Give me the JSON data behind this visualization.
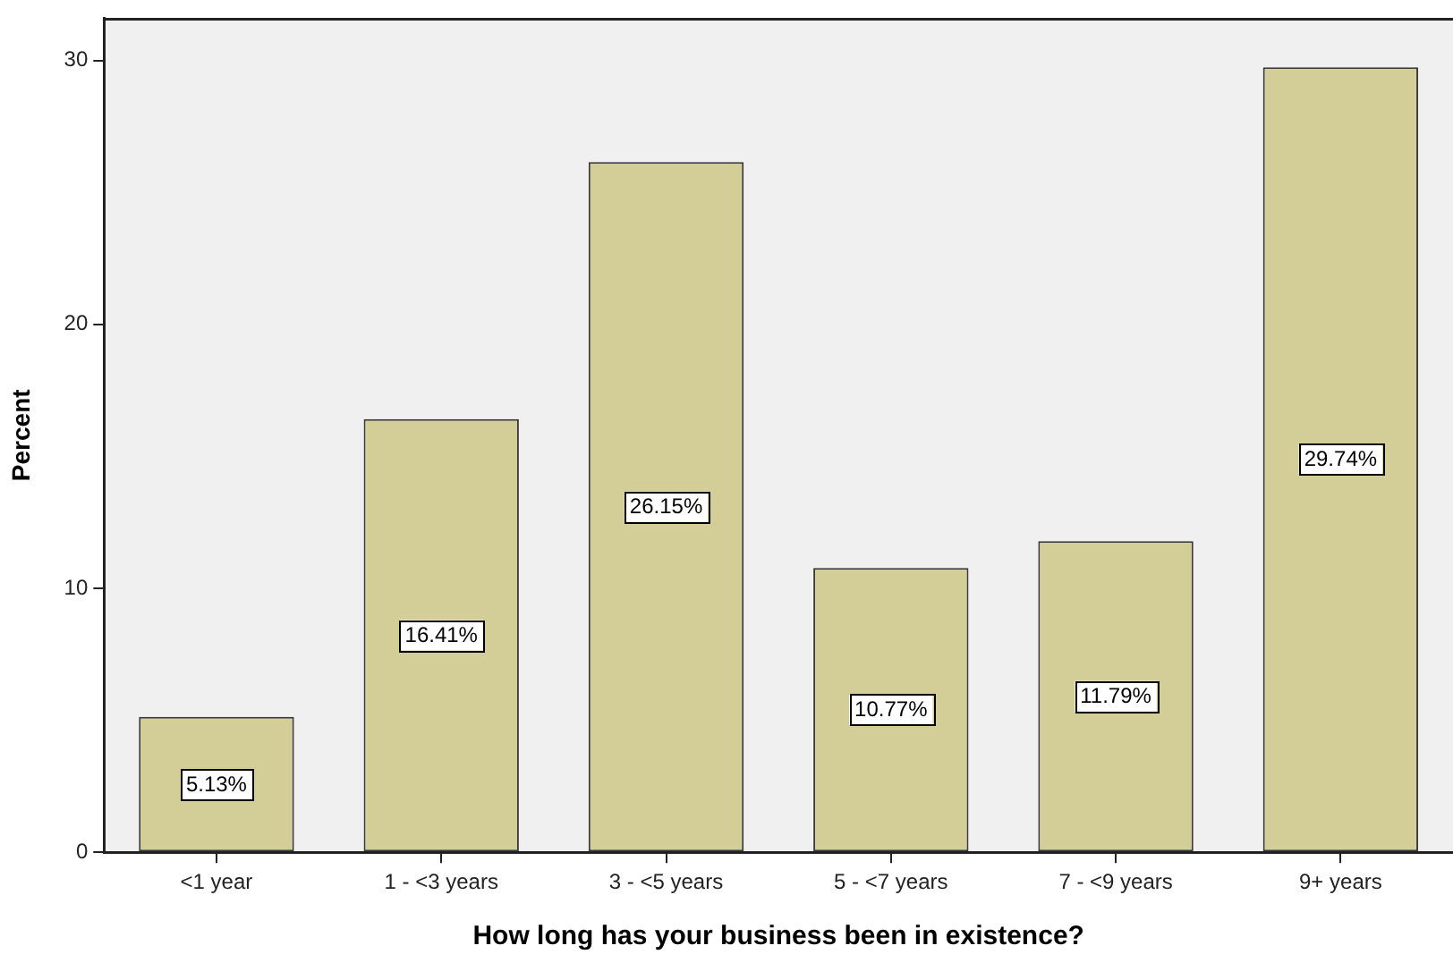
{
  "chart_data": {
    "type": "bar",
    "xlabel": "How long has your business been in existence?",
    "ylabel": "Percent",
    "categories": [
      "<1 year",
      "1 - <3 years",
      "3 - <5 years",
      "5 - <7 years",
      "7 - <9 years",
      "9+ years"
    ],
    "values": [
      5.13,
      16.41,
      26.15,
      10.77,
      11.79,
      29.74
    ],
    "value_labels": [
      "5.13%",
      "16.41%",
      "26.15%",
      "10.77%",
      "11.79%",
      "29.74%"
    ],
    "color": "#d3ce97",
    "ylim": [
      0,
      31.6
    ],
    "yticks": [
      0,
      10,
      20,
      30
    ]
  }
}
